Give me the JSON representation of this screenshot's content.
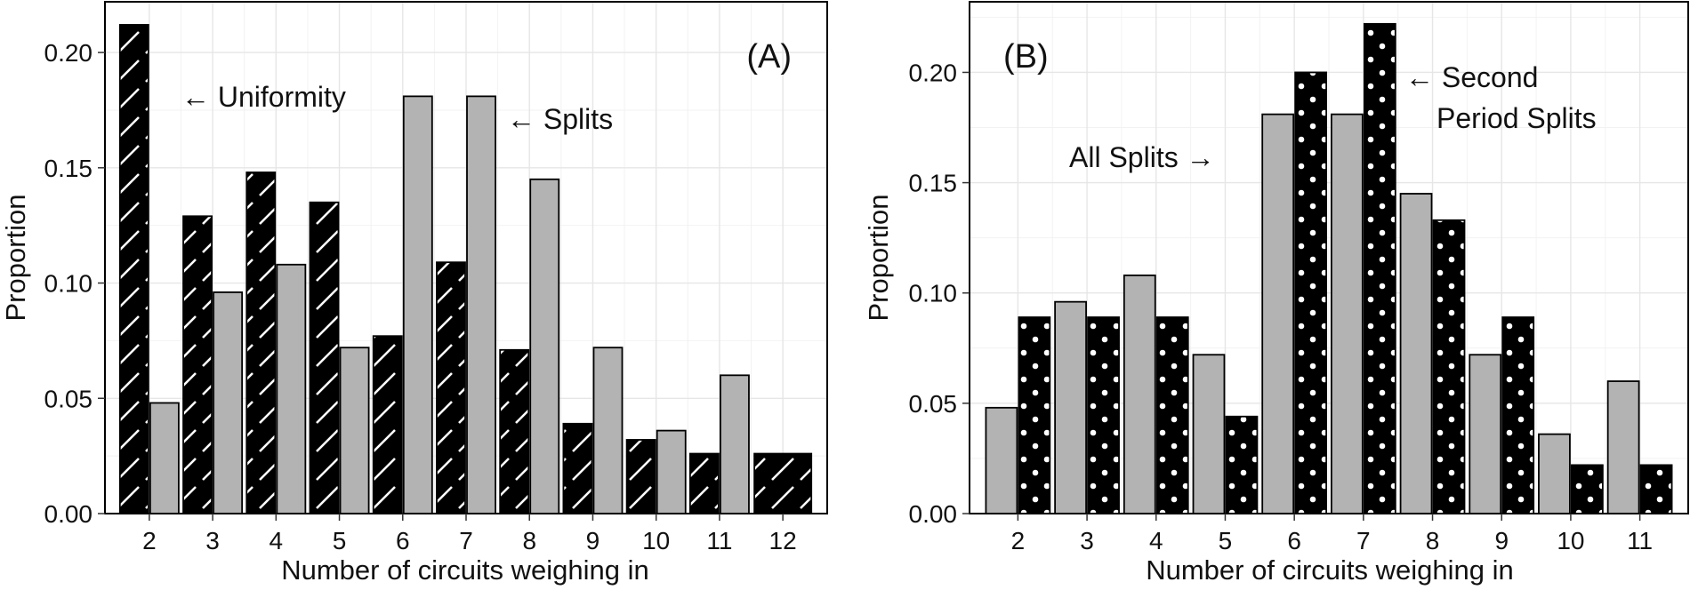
{
  "chart_data": [
    {
      "panel": "A",
      "type": "bar",
      "title": "",
      "panel_label": "(A)",
      "xlabel": "Number of circuits weighing in",
      "ylabel": "Proportion",
      "categories": [
        "2",
        "3",
        "4",
        "5",
        "6",
        "7",
        "8",
        "9",
        "10",
        "11",
        "12"
      ],
      "ylim": [
        0,
        0.222
      ],
      "yticks": [
        "0.00",
        "0.05",
        "0.10",
        "0.15",
        "0.20"
      ],
      "ytick_values": [
        0,
        0.05,
        0.1,
        0.15,
        0.2
      ],
      "grid": true,
      "series": [
        {
          "name": "Uniformity",
          "pattern": "hatch",
          "values": [
            0.212,
            0.129,
            0.148,
            0.135,
            0.077,
            0.109,
            0.071,
            0.039,
            0.032,
            0.026,
            0.026
          ]
        },
        {
          "name": "Splits",
          "pattern": "gray",
          "values": [
            0.048,
            0.096,
            0.108,
            0.072,
            0.181,
            0.181,
            0.145,
            0.072,
            0.036,
            0.06,
            null
          ]
        }
      ],
      "annotations": [
        {
          "text": "← Uniformity",
          "x": "2",
          "y": 0.182
        },
        {
          "text": "← Splits",
          "x": "7",
          "y": 0.171
        }
      ]
    },
    {
      "panel": "B",
      "type": "bar",
      "title": "",
      "panel_label": "(B)",
      "xlabel": "Number of circuits weighing in",
      "ylabel": "Proportion",
      "categories": [
        "2",
        "3",
        "4",
        "5",
        "6",
        "7",
        "8",
        "9",
        "10",
        "11"
      ],
      "ylim": [
        0,
        0.232
      ],
      "yticks": [
        "0.00",
        "0.05",
        "0.10",
        "0.15",
        "0.20"
      ],
      "ytick_values": [
        0,
        0.05,
        0.1,
        0.15,
        0.2
      ],
      "grid": true,
      "series": [
        {
          "name": "All Splits",
          "pattern": "gray",
          "values": [
            0.048,
            0.096,
            0.108,
            0.072,
            0.181,
            0.181,
            0.145,
            0.072,
            0.036,
            0.06
          ]
        },
        {
          "name": "Second Period Splits",
          "pattern": "dots",
          "values": [
            0.089,
            0.089,
            0.089,
            0.044,
            0.2,
            0.222,
            0.133,
            0.089,
            0.022,
            0.022
          ]
        }
      ],
      "annotations": [
        {
          "text": "All Splits →",
          "x": "5",
          "y": 0.162
        },
        {
          "text": "← Second",
          "x": "7",
          "y": 0.199
        },
        {
          "text": "Period Splits",
          "x": "8",
          "y": 0.18
        }
      ]
    }
  ]
}
